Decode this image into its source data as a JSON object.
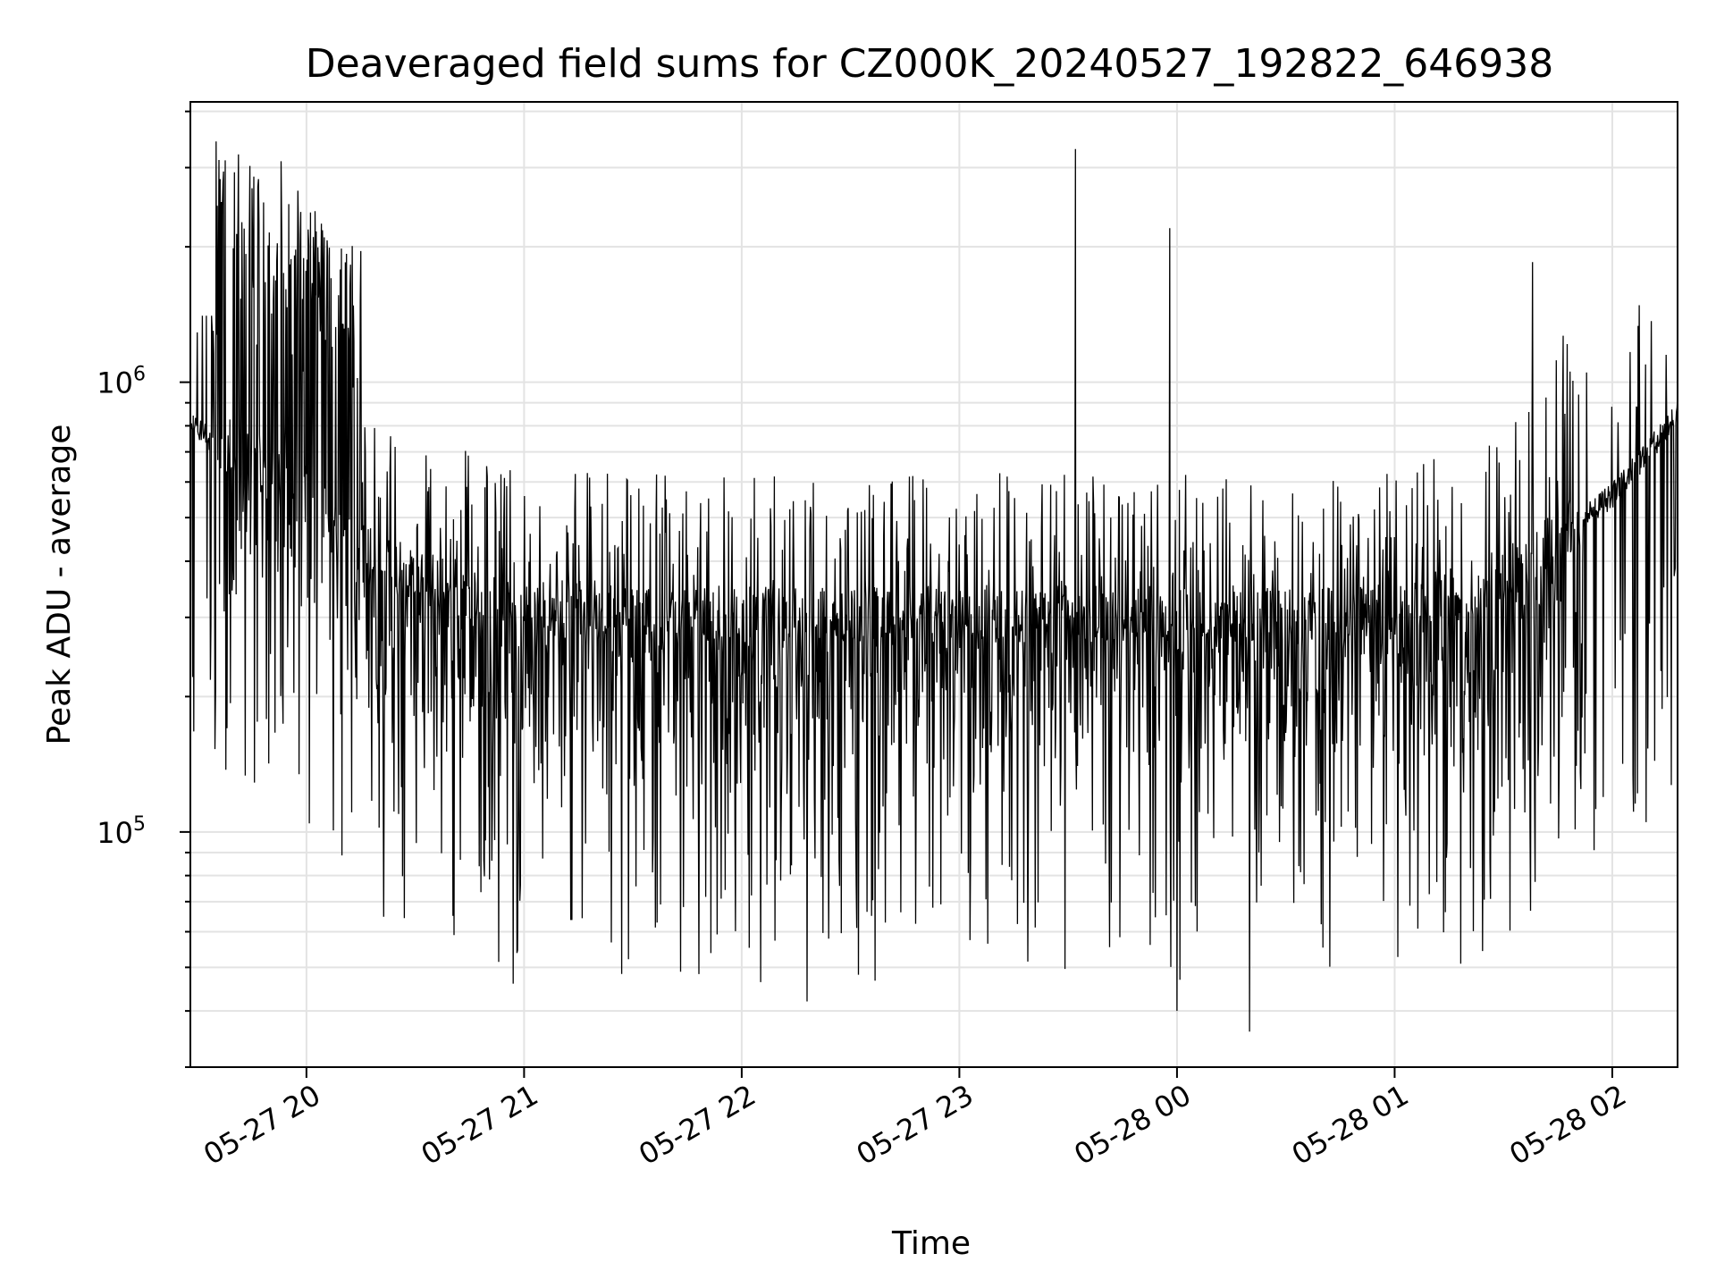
{
  "chart_data": {
    "type": "line",
    "title": "Deaveraged field sums for CZ000K_20240527_192822_646938",
    "xlabel": "Time",
    "ylabel": "Peak ADU - average",
    "x_scale": "time",
    "y_scale": "log",
    "xlim": [
      "2024-05-27 19:28",
      "2024-05-28 02:18"
    ],
    "ylim": [
      30000,
      4200000
    ],
    "grid": true,
    "line_color": "#000000",
    "x_ticks": [
      {
        "label": "05-27 20",
        "value": "2024-05-27 20:00"
      },
      {
        "label": "05-27 21",
        "value": "2024-05-27 21:00"
      },
      {
        "label": "05-27 22",
        "value": "2024-05-27 22:00"
      },
      {
        "label": "05-27 23",
        "value": "2024-05-27 23:00"
      },
      {
        "label": "05-28 00",
        "value": "2024-05-28 00:00"
      },
      {
        "label": "05-28 01",
        "value": "2024-05-28 01:00"
      },
      {
        "label": "05-28 02",
        "value": "2024-05-28 02:00"
      }
    ],
    "y_ticks": [
      {
        "base": "10",
        "exp": "5",
        "value": 100000
      },
      {
        "base": "10",
        "exp": "6",
        "value": 1000000
      }
    ],
    "series": [
      {
        "x": [
          "2024-05-27 19:28",
          "2024-05-27 19:35",
          "2024-05-27 19:42",
          "2024-05-27 19:50",
          "2024-05-27 19:58",
          "2024-05-27 20:05",
          "2024-05-27 20:12",
          "2024-05-27 20:20",
          "2024-05-27 20:30",
          "2024-05-27 20:40",
          "2024-05-27 20:50",
          "2024-05-27 21:00",
          "2024-05-27 21:15",
          "2024-05-27 21:30",
          "2024-05-27 21:45",
          "2024-05-27 22:00",
          "2024-05-27 22:15",
          "2024-05-27 22:30",
          "2024-05-27 22:45",
          "2024-05-27 23:00",
          "2024-05-27 23:15",
          "2024-05-27 23:30",
          "2024-05-27 23:45",
          "2024-05-28 00:00",
          "2024-05-28 00:15",
          "2024-05-28 00:30",
          "2024-05-28 00:45",
          "2024-05-28 01:00",
          "2024-05-28 01:10",
          "2024-05-28 01:20",
          "2024-05-28 01:30",
          "2024-05-28 01:40",
          "2024-05-28 01:50",
          "2024-05-28 02:00",
          "2024-05-28 02:10",
          "2024-05-28 02:18"
        ],
        "y": [
          800000,
          740000,
          690000,
          640000,
          580000,
          500000,
          440000,
          400000,
          370000,
          345000,
          330000,
          320000,
          310000,
          305000,
          300000,
          300000,
          300000,
          300000,
          300000,
          300000,
          300000,
          300000,
          300000,
          300000,
          300000,
          300000,
          300000,
          305000,
          320000,
          340000,
          370000,
          420000,
          480000,
          560000,
          700000,
          870000
        ],
        "noise": "dense high-frequency fluctuations, upward spikes to ~2.5x and downward dips to ~0.15x of baseline"
      }
    ],
    "peaks": [
      {
        "x": "2024-05-27 19:45",
        "y": 2700000
      },
      {
        "x": "2024-05-27 19:53",
        "y": 3100000
      },
      {
        "x": "2024-05-27 23:58",
        "y": 2200000
      },
      {
        "x": "2024-05-27 23:32",
        "y": 3300000
      },
      {
        "x": "2024-05-28 01:38",
        "y": 1850000
      }
    ],
    "troughs": [
      {
        "x": "2024-05-27 20:57",
        "y": 46000
      },
      {
        "x": "2024-05-27 22:18",
        "y": 42000
      },
      {
        "x": "2024-05-28 00:00",
        "y": 40000
      },
      {
        "x": "2024-05-28 00:20",
        "y": 36000
      }
    ]
  }
}
